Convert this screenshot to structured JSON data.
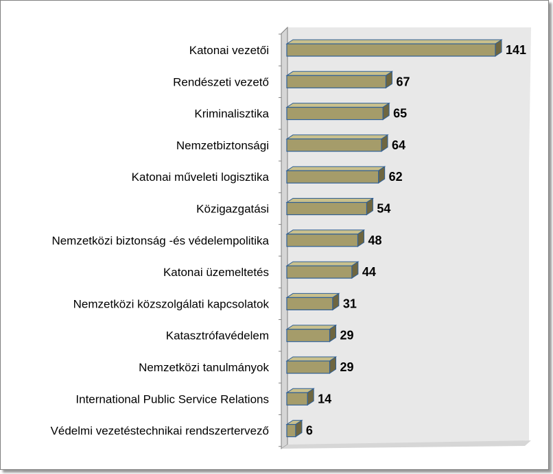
{
  "chart_data": {
    "type": "bar",
    "orientation": "horizontal",
    "style": "3d",
    "categories": [
      "Katonai vezetői",
      "Rendészeti vezető",
      "Kriminalisztika",
      "Nemzetbiztonsági",
      "Katonai műveleti logisztika",
      "Közigazgatási",
      "Nemzetközi biztonság  -és védelempolitika",
      "Katonai üzemeltetés",
      "Nemzetközi közszolgálati  kapcsolatok",
      "Katasztrófavédelem",
      "Nemzetközi tanulmányok",
      "International Public Service Relations",
      "Védelmi vezetéstechnikai rendszertervező"
    ],
    "values": [
      141,
      67,
      65,
      64,
      62,
      54,
      48,
      44,
      31,
      29,
      29,
      14,
      6
    ],
    "xlim": [
      0,
      141
    ],
    "grid": false,
    "legend": "none",
    "colors": {
      "bar_front": "#a59c6a",
      "bar_top": "#c9c08c",
      "bar_side": "#6e6640",
      "bar_edge": "#2f5f96",
      "wall": "#e8e8e8",
      "floor": "#d6d6d6",
      "axis": "#7f7f7f"
    }
  }
}
